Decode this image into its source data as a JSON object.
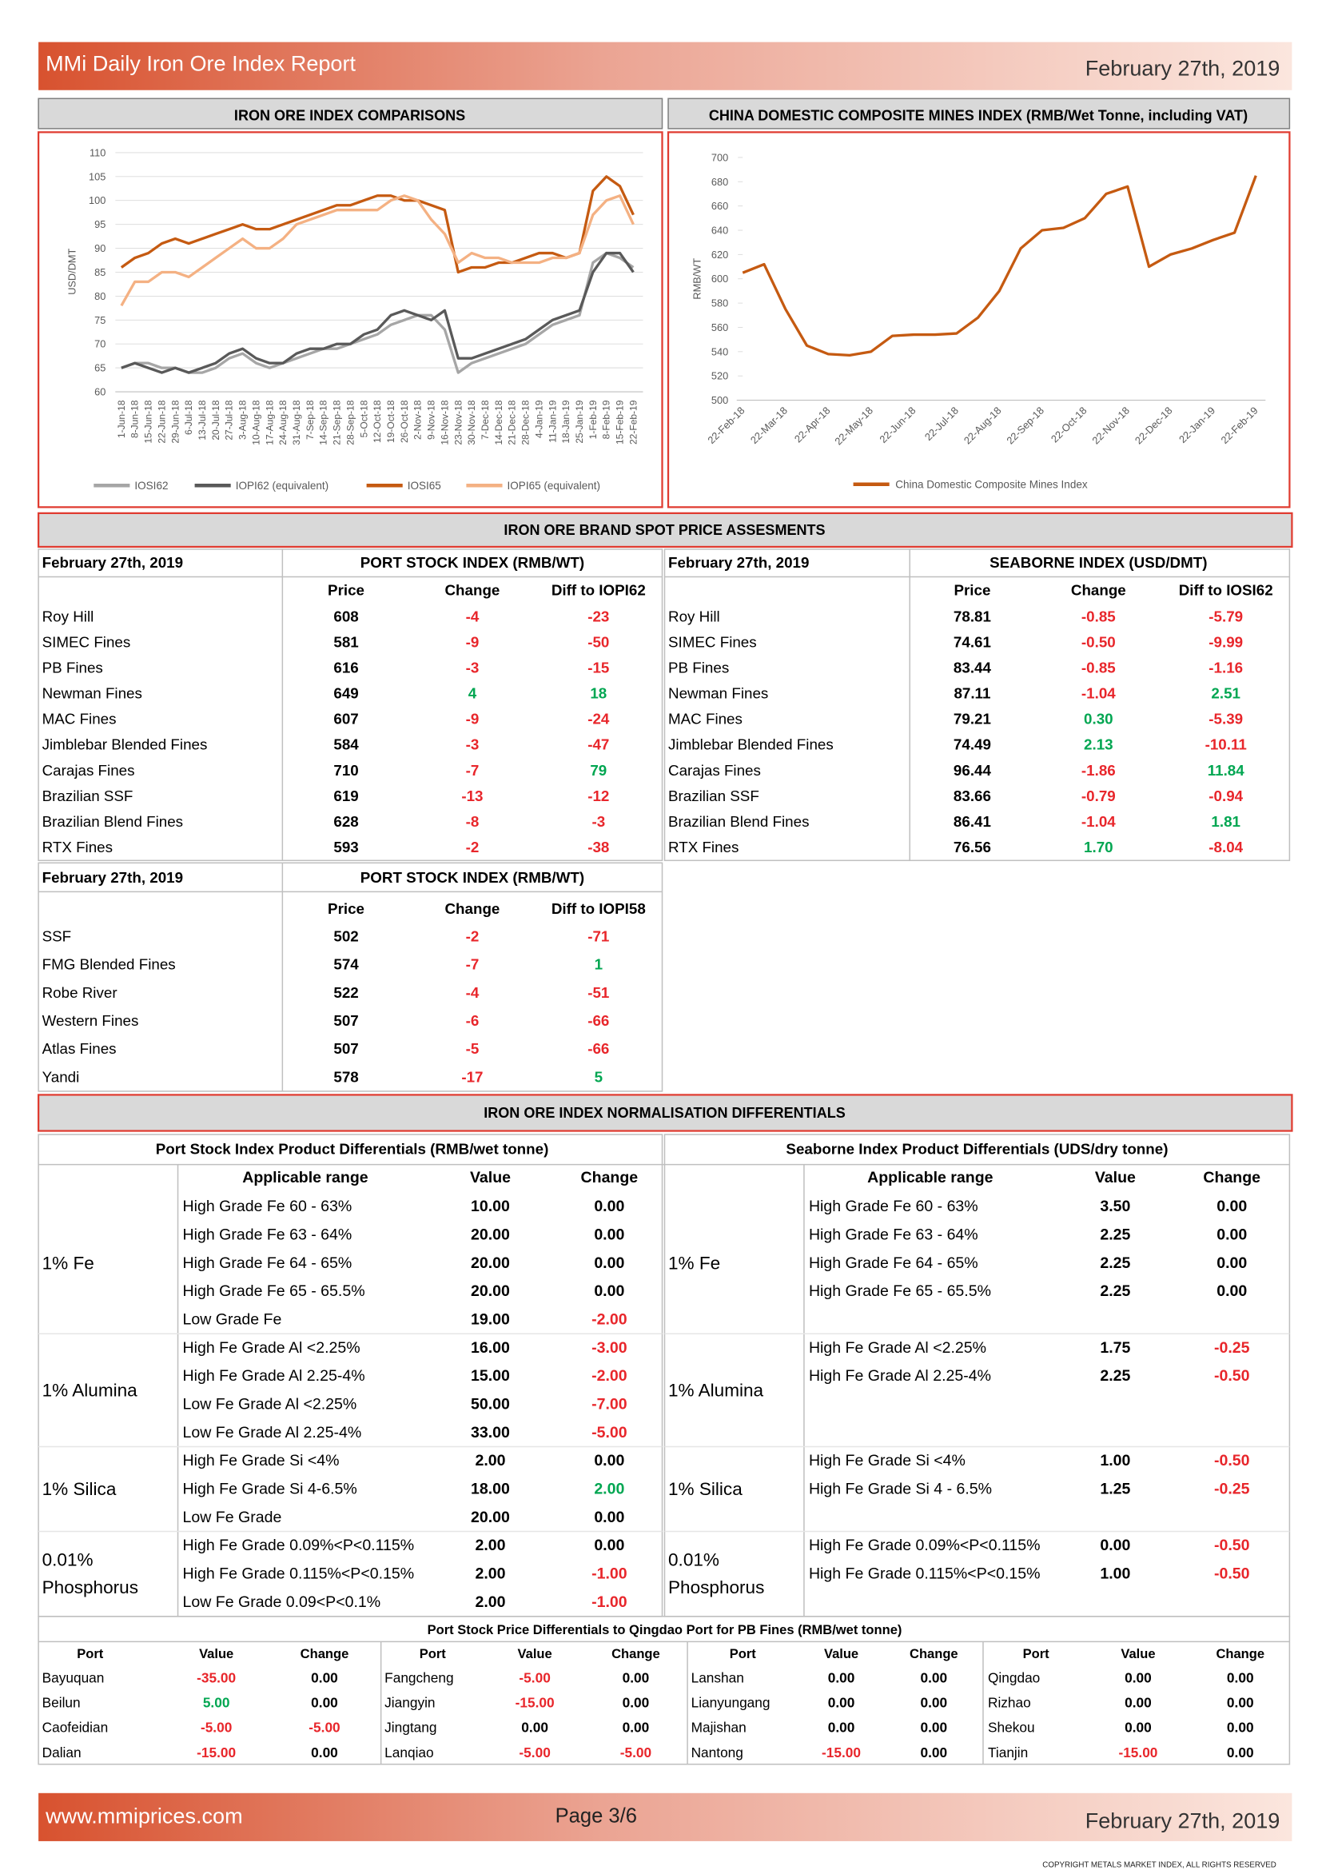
{
  "header": {
    "title": "MMi Daily Iron Ore Index Report",
    "date": "February 27th, 2019"
  },
  "chart_data": [
    {
      "type": "line",
      "title": "IRON ORE INDEX COMPARISONS",
      "y_label": "USD/DMT",
      "categories": [
        "1-Jun-18",
        "8-Jun-18",
        "15-Jun-18",
        "22-Jun-18",
        "29-Jun-18",
        "6-Jul-18",
        "13-Jul-18",
        "20-Jul-18",
        "27-Jul-18",
        "3-Aug-18",
        "10-Aug-18",
        "17-Aug-18",
        "24-Aug-18",
        "31-Aug-18",
        "7-Sep-18",
        "14-Sep-18",
        "21-Sep-18",
        "28-Sep-18",
        "5-Oct-18",
        "12-Oct-18",
        "19-Oct-18",
        "26-Oct-18",
        "2-Nov-18",
        "9-Nov-18",
        "16-Nov-18",
        "23-Nov-18",
        "30-Nov-18",
        "7-Dec-18",
        "14-Dec-18",
        "21-Dec-18",
        "28-Dec-18",
        "4-Jan-19",
        "11-Jan-19",
        "18-Jan-19",
        "25-Jan-19",
        "1-Feb-19",
        "8-Feb-19",
        "15-Feb-19",
        "22-Feb-19"
      ],
      "ylim": [
        60,
        110
      ],
      "yticks": [
        60,
        65,
        70,
        75,
        80,
        85,
        90,
        95,
        100,
        105,
        110
      ],
      "grid": true,
      "series": [
        {
          "name": "IOSI62",
          "color": "#a6a6a6",
          "values": [
            65,
            66,
            66,
            65,
            65,
            64,
            64,
            65,
            67,
            68,
            66,
            65,
            66,
            67,
            68,
            69,
            69,
            70,
            71,
            72,
            74,
            75,
            76,
            76,
            73,
            64,
            66,
            67,
            68,
            69,
            70,
            72,
            74,
            75,
            76,
            87,
            89,
            88,
            86
          ]
        },
        {
          "name": "IOPI62 (equivalent)",
          "color": "#595959",
          "values": [
            65,
            66,
            65,
            64,
            65,
            64,
            65,
            66,
            68,
            69,
            67,
            66,
            66,
            68,
            69,
            69,
            70,
            70,
            72,
            73,
            76,
            77,
            76,
            75,
            77,
            67,
            67,
            68,
            69,
            70,
            71,
            73,
            75,
            76,
            77,
            85,
            89,
            89,
            85
          ]
        },
        {
          "name": "IOSI65",
          "color": "#c55a11",
          "values": [
            86,
            88,
            89,
            91,
            92,
            91,
            92,
            93,
            94,
            95,
            94,
            94,
            95,
            96,
            97,
            98,
            99,
            99,
            100,
            101,
            101,
            100,
            100,
            99,
            98,
            85,
            86,
            86,
            87,
            87,
            88,
            89,
            89,
            88,
            89,
            102,
            105,
            103,
            97
          ]
        },
        {
          "name": "IOPI65 (equivalent)",
          "color": "#f4b183",
          "values": [
            78,
            83,
            83,
            85,
            85,
            84,
            86,
            88,
            90,
            92,
            90,
            90,
            92,
            95,
            96,
            97,
            98,
            98,
            98,
            98,
            100,
            101,
            100,
            96,
            93,
            87,
            89,
            88,
            88,
            87,
            87,
            87,
            88,
            88,
            89,
            97,
            100,
            101,
            95
          ]
        }
      ]
    },
    {
      "type": "line",
      "title": "CHINA DOMESTIC COMPOSITE MINES INDEX (RMB/Wet Tonne, including VAT)",
      "y_label": "RMB/WT",
      "categories": [
        "22-Feb-18",
        null,
        "22-Mar-18",
        null,
        "22-Apr-18",
        null,
        "22-May-18",
        null,
        "22-Jun-18",
        null,
        "22-Jul-18",
        null,
        "22-Aug-18",
        null,
        "22-Sep-18",
        null,
        "22-Oct-18",
        null,
        "22-Nov-18",
        null,
        "22-Dec-18",
        null,
        "22-Jan-19",
        null,
        "22-Feb-19"
      ],
      "ylim": [
        500,
        700
      ],
      "yticks": [
        500,
        520,
        540,
        560,
        580,
        600,
        620,
        640,
        660,
        680,
        700
      ],
      "grid": false,
      "series": [
        {
          "name": "China Domestic Composite Mines Index",
          "color": "#c55a11",
          "values": [
            605,
            612,
            575,
            545,
            538,
            537,
            540,
            553,
            554,
            554,
            555,
            568,
            590,
            625,
            640,
            642,
            650,
            670,
            676,
            610,
            620,
            625,
            632,
            638,
            685
          ]
        }
      ]
    }
  ],
  "spot": {
    "title": "IRON ORE BRAND SPOT PRICE ASSESMENTS",
    "port_stock": {
      "date": "February 27th, 2019",
      "heading": "PORT STOCK INDEX (RMB/WT)",
      "columns": [
        "Price",
        "Change",
        "Diff to IOPI62"
      ],
      "rows": [
        [
          "Roy Hill",
          "608",
          "-4",
          "-23"
        ],
        [
          "SIMEC Fines",
          "581",
          "-9",
          "-50"
        ],
        [
          "PB Fines",
          "616",
          "-3",
          "-15"
        ],
        [
          "Newman Fines",
          "649",
          "4",
          "18"
        ],
        [
          "MAC Fines",
          "607",
          "-9",
          "-24"
        ],
        [
          "Jimblebar Blended Fines",
          "584",
          "-3",
          "-47"
        ],
        [
          "Carajas Fines",
          "710",
          "-7",
          "79"
        ],
        [
          "Brazilian SSF",
          "619",
          "-13",
          "-12"
        ],
        [
          "Brazilian Blend Fines",
          "628",
          "-8",
          "-3"
        ],
        [
          "RTX Fines",
          "593",
          "-2",
          "-38"
        ]
      ]
    },
    "seaborne": {
      "date": "February 27th, 2019",
      "heading": "SEABORNE INDEX (USD/DMT)",
      "columns": [
        "Price",
        "Change",
        "Diff to IOSI62"
      ],
      "rows": [
        [
          "Roy Hill",
          "78.81",
          "-0.85",
          "-5.79"
        ],
        [
          "SIMEC Fines",
          "74.61",
          "-0.50",
          "-9.99"
        ],
        [
          "PB Fines",
          "83.44",
          "-0.85",
          "-1.16"
        ],
        [
          "Newman Fines",
          "87.11",
          "-1.04",
          "2.51"
        ],
        [
          "MAC Fines",
          "79.21",
          "0.30",
          "-5.39"
        ],
        [
          "Jimblebar Blended Fines",
          "74.49",
          "2.13",
          "-10.11"
        ],
        [
          "Carajas Fines",
          "96.44",
          "-1.86",
          "11.84"
        ],
        [
          "Brazilian SSF",
          "83.66",
          "-0.79",
          "-0.94"
        ],
        [
          "Brazilian Blend Fines",
          "86.41",
          "-1.04",
          "1.81"
        ],
        [
          "RTX Fines",
          "76.56",
          "1.70",
          "-8.04"
        ]
      ]
    },
    "port_stock_58": {
      "date": "February 27th, 2019",
      "heading": "PORT STOCK INDEX (RMB/WT)",
      "columns": [
        "Price",
        "Change",
        "Diff to IOPI58"
      ],
      "rows": [
        [
          "SSF",
          "502",
          "-2",
          "-71"
        ],
        [
          "FMG Blended Fines",
          "574",
          "-7",
          "1"
        ],
        [
          "Robe River",
          "522",
          "-4",
          "-51"
        ],
        [
          "Western Fines",
          "507",
          "-6",
          "-66"
        ],
        [
          "Atlas Fines",
          "507",
          "-5",
          "-66"
        ],
        [
          "Yandi",
          "578",
          "-17",
          "5"
        ]
      ]
    }
  },
  "normalisation": {
    "title": "IRON ORE INDEX NORMALISATION DIFFERENTIALS",
    "columns": [
      "Applicable range",
      "Value",
      "Change"
    ],
    "left": {
      "heading": "Port Stock Index Product Differentials (RMB/wet tonne)",
      "groups": [
        {
          "label": [
            "1% Fe"
          ],
          "rows": [
            [
              "High Grade Fe 60 - 63%",
              "10.00",
              "0.00"
            ],
            [
              "High Grade Fe 63 - 64%",
              "20.00",
              "0.00"
            ],
            [
              "High Grade Fe 64 - 65%",
              "20.00",
              "0.00"
            ],
            [
              "High Grade Fe 65 - 65.5%",
              "20.00",
              "0.00"
            ],
            [
              "Low Grade Fe",
              "19.00",
              "-2.00"
            ]
          ]
        },
        {
          "label": [
            "1% Alumina"
          ],
          "rows": [
            [
              "High Fe Grade Al <2.25%",
              "16.00",
              "-3.00"
            ],
            [
              "High Fe Grade Al 2.25-4%",
              "15.00",
              "-2.00"
            ],
            [
              "Low Fe Grade Al <2.25%",
              "50.00",
              "-7.00"
            ],
            [
              "Low Fe Grade Al 2.25-4%",
              "33.00",
              "-5.00"
            ]
          ]
        },
        {
          "label": [
            "1% Silica"
          ],
          "rows": [
            [
              "High Fe Grade Si <4%",
              "2.00",
              "0.00"
            ],
            [
              "High Fe Grade Si 4-6.5%",
              "18.00",
              "2.00"
            ],
            [
              "Low Fe Grade",
              "20.00",
              "0.00"
            ]
          ]
        },
        {
          "label": [
            "0.01%",
            "Phosphorus"
          ],
          "rows": [
            [
              "High Fe Grade 0.09%<P<0.115%",
              "2.00",
              "0.00"
            ],
            [
              "High Fe Grade 0.115%<P<0.15%",
              "2.00",
              "-1.00"
            ],
            [
              "Low Fe Grade 0.09<P<0.1%",
              "2.00",
              "-1.00"
            ]
          ]
        }
      ]
    },
    "right": {
      "heading": "Seaborne Index Product Differentials (UDS/dry tonne)",
      "groups": [
        {
          "label": [
            "1% Fe"
          ],
          "rows": [
            [
              "High Grade Fe 60 - 63%",
              "3.50",
              "0.00"
            ],
            [
              "High Grade Fe 63 - 64%",
              "2.25",
              "0.00"
            ],
            [
              "High Grade Fe 64 - 65%",
              "2.25",
              "0.00"
            ],
            [
              "High Grade Fe 65 - 65.5%",
              "2.25",
              "0.00"
            ]
          ]
        },
        {
          "label": [
            "1% Alumina"
          ],
          "rows": [
            [
              "High Fe Grade Al <2.25%",
              "1.75",
              "-0.25"
            ],
            [
              "High Fe Grade Al 2.25-4%",
              "2.25",
              "-0.50"
            ]
          ]
        },
        {
          "label": [
            "1% Silica"
          ],
          "rows": [
            [
              "High Fe Grade Si <4%",
              "1.00",
              "-0.50"
            ],
            [
              "High Fe Grade Si 4 - 6.5%",
              "1.25",
              "-0.25"
            ]
          ]
        },
        {
          "label": [
            "0.01%",
            "Phosphorus"
          ],
          "rows": [
            [
              "High Fe Grade 0.09%<P<0.115%",
              "0.00",
              "-0.50"
            ],
            [
              "High Fe Grade 0.115%<P<0.15%",
              "1.00",
              "-0.50"
            ]
          ]
        }
      ]
    }
  },
  "port_diff": {
    "title": "Port Stock Price Differentials to Qingdao Port for PB Fines (RMB/wet tonne)",
    "columns": [
      "Port",
      "Value",
      "Change"
    ],
    "blocks": [
      [
        [
          "Bayuquan",
          "-35.00",
          "0.00"
        ],
        [
          "Beilun",
          "5.00",
          "0.00"
        ],
        [
          "Caofeidian",
          "-5.00",
          "-5.00"
        ],
        [
          "Dalian",
          "-15.00",
          "0.00"
        ]
      ],
      [
        [
          "Fangcheng",
          "-5.00",
          "0.00"
        ],
        [
          "Jiangyin",
          "-15.00",
          "0.00"
        ],
        [
          "Jingtang",
          "0.00",
          "0.00"
        ],
        [
          "Lanqiao",
          "-5.00",
          "-5.00"
        ]
      ],
      [
        [
          "Lanshan",
          "0.00",
          "0.00"
        ],
        [
          "Lianyungang",
          "0.00",
          "0.00"
        ],
        [
          "Majishan",
          "0.00",
          "0.00"
        ],
        [
          "Nantong",
          "-15.00",
          "0.00"
        ]
      ],
      [
        [
          "Qingdao",
          "0.00",
          "0.00"
        ],
        [
          "Rizhao",
          "0.00",
          "0.00"
        ],
        [
          "Shekou",
          "0.00",
          "0.00"
        ],
        [
          "Tianjin",
          "-15.00",
          "0.00"
        ]
      ]
    ]
  },
  "footer": {
    "website": "www.mmiprices.com",
    "page": "Page 3/6",
    "date": "February 27th, 2019",
    "copyright": "COPYRIGHT METALS MARKET INDEX, ALL RIGHTS RESERVED"
  }
}
